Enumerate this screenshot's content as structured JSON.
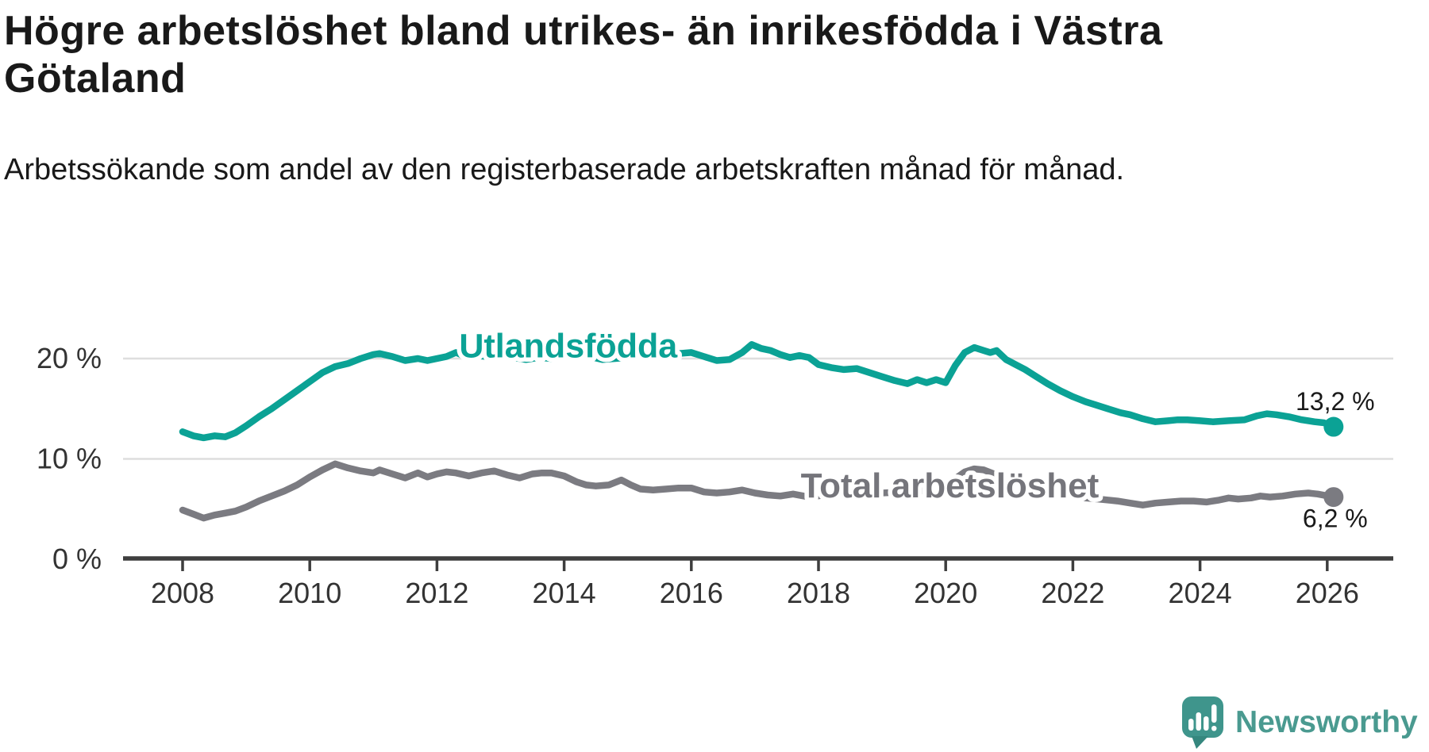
{
  "header": {
    "title": "Högre arbetslöshet bland utrikes- än inrikesfödda i Västra Götaland",
    "subtitle": "Arbetssökande som andel av den registerbaserade arbetskraften månad för månad."
  },
  "footer": {
    "brand": "Newsworthy"
  },
  "colors": {
    "accent_teal": "#0BA295",
    "line_gray": "#7B7B81",
    "label_gray": "#75757B",
    "axis_text": "#333333",
    "axis_line": "#3E3E3E",
    "gridline": "#DEDEDE",
    "logo_teal": "#3F958C"
  },
  "chart_data": {
    "type": "line",
    "title": "Högre arbetslöshet bland utrikes- än inrikesfödda i Västra Götaland",
    "xlabel": "",
    "ylabel": "Arbetssökande som andel av den registerbaserade arbetskraften",
    "grid": "horizontal",
    "legend_position": "inline",
    "xlim": [
      2007.05,
      2027.05
    ],
    "ylim": [
      0,
      22
    ],
    "x_ticks": [
      2008,
      2010,
      2012,
      2014,
      2016,
      2018,
      2020,
      2022,
      2024,
      2026
    ],
    "y_ticks": [
      0,
      10,
      20
    ],
    "y_tick_suffix": " %",
    "series": [
      {
        "name": "Utlandsfödda",
        "color": "#0BA295",
        "label_font_size": 43,
        "end_label": "13,2 %",
        "end_value": 13.2,
        "end_label_position": "above",
        "label_anchor": {
          "year": 2012.35,
          "value": 20.1
        },
        "points": [
          [
            2008.0,
            12.7
          ],
          [
            2008.17,
            12.3
          ],
          [
            2008.33,
            12.1
          ],
          [
            2008.5,
            12.3
          ],
          [
            2008.67,
            12.2
          ],
          [
            2008.83,
            12.6
          ],
          [
            2009.0,
            13.3
          ],
          [
            2009.2,
            14.2
          ],
          [
            2009.4,
            15.0
          ],
          [
            2009.6,
            15.9
          ],
          [
            2009.8,
            16.8
          ],
          [
            2010.0,
            17.7
          ],
          [
            2010.2,
            18.6
          ],
          [
            2010.4,
            19.2
          ],
          [
            2010.6,
            19.5
          ],
          [
            2010.8,
            20.0
          ],
          [
            2011.0,
            20.4
          ],
          [
            2011.1,
            20.5
          ],
          [
            2011.3,
            20.2
          ],
          [
            2011.5,
            19.8
          ],
          [
            2011.7,
            20.0
          ],
          [
            2011.85,
            19.8
          ],
          [
            2012.0,
            20.0
          ],
          [
            2012.15,
            20.2
          ],
          [
            2012.3,
            20.6
          ],
          [
            2012.45,
            20.2
          ],
          [
            2012.6,
            20.3
          ],
          [
            2012.8,
            20.2
          ],
          [
            2013.0,
            20.4
          ],
          [
            2013.2,
            20.1
          ],
          [
            2013.4,
            19.9
          ],
          [
            2013.6,
            20.1
          ],
          [
            2013.8,
            20.0
          ],
          [
            2014.0,
            20.2
          ],
          [
            2014.2,
            20.4
          ],
          [
            2014.4,
            20.2
          ],
          [
            2014.6,
            19.9
          ],
          [
            2014.8,
            20.0
          ],
          [
            2015.0,
            20.1
          ],
          [
            2015.2,
            20.3
          ],
          [
            2015.4,
            20.1
          ],
          [
            2015.6,
            20.2
          ],
          [
            2015.8,
            20.5
          ],
          [
            2016.0,
            20.6
          ],
          [
            2016.2,
            20.2
          ],
          [
            2016.4,
            19.8
          ],
          [
            2016.6,
            19.9
          ],
          [
            2016.8,
            20.6
          ],
          [
            2016.95,
            21.4
          ],
          [
            2017.1,
            21.0
          ],
          [
            2017.25,
            20.8
          ],
          [
            2017.4,
            20.4
          ],
          [
            2017.55,
            20.1
          ],
          [
            2017.7,
            20.3
          ],
          [
            2017.85,
            20.1
          ],
          [
            2018.0,
            19.4
          ],
          [
            2018.2,
            19.1
          ],
          [
            2018.4,
            18.9
          ],
          [
            2018.6,
            19.0
          ],
          [
            2018.8,
            18.6
          ],
          [
            2019.0,
            18.2
          ],
          [
            2019.2,
            17.8
          ],
          [
            2019.4,
            17.5
          ],
          [
            2019.55,
            17.9
          ],
          [
            2019.7,
            17.6
          ],
          [
            2019.85,
            17.9
          ],
          [
            2020.0,
            17.6
          ],
          [
            2020.15,
            19.3
          ],
          [
            2020.3,
            20.6
          ],
          [
            2020.45,
            21.1
          ],
          [
            2020.6,
            20.8
          ],
          [
            2020.7,
            20.6
          ],
          [
            2020.8,
            20.8
          ],
          [
            2020.95,
            19.9
          ],
          [
            2021.1,
            19.4
          ],
          [
            2021.25,
            18.9
          ],
          [
            2021.4,
            18.3
          ],
          [
            2021.6,
            17.5
          ],
          [
            2021.8,
            16.8
          ],
          [
            2022.0,
            16.2
          ],
          [
            2022.2,
            15.7
          ],
          [
            2022.35,
            15.4
          ],
          [
            2022.55,
            15.0
          ],
          [
            2022.75,
            14.6
          ],
          [
            2022.9,
            14.4
          ],
          [
            2023.1,
            14.0
          ],
          [
            2023.3,
            13.7
          ],
          [
            2023.5,
            13.8
          ],
          [
            2023.65,
            13.9
          ],
          [
            2023.8,
            13.9
          ],
          [
            2024.0,
            13.8
          ],
          [
            2024.2,
            13.7
          ],
          [
            2024.45,
            13.8
          ],
          [
            2024.7,
            13.9
          ],
          [
            2024.9,
            14.3
          ],
          [
            2025.05,
            14.5
          ],
          [
            2025.2,
            14.4
          ],
          [
            2025.4,
            14.2
          ],
          [
            2025.6,
            13.9
          ],
          [
            2025.8,
            13.7
          ],
          [
            2025.95,
            13.6
          ],
          [
            2026.1,
            13.2
          ]
        ]
      },
      {
        "name": "Total arbetslöshet",
        "color": "#7B7B81",
        "label_color": "#75757B",
        "label_font_size": 44,
        "end_label": "6,2 %",
        "end_value": 6.2,
        "end_label_position": "below",
        "label_anchor": {
          "year": 2017.72,
          "value": 6.15
        },
        "points": [
          [
            2008.0,
            4.9
          ],
          [
            2008.17,
            4.5
          ],
          [
            2008.33,
            4.1
          ],
          [
            2008.5,
            4.4
          ],
          [
            2008.67,
            4.6
          ],
          [
            2008.83,
            4.8
          ],
          [
            2009.0,
            5.2
          ],
          [
            2009.2,
            5.8
          ],
          [
            2009.4,
            6.3
          ],
          [
            2009.6,
            6.8
          ],
          [
            2009.8,
            7.4
          ],
          [
            2010.0,
            8.2
          ],
          [
            2010.2,
            8.9
          ],
          [
            2010.4,
            9.5
          ],
          [
            2010.6,
            9.1
          ],
          [
            2010.8,
            8.8
          ],
          [
            2011.0,
            8.6
          ],
          [
            2011.1,
            8.9
          ],
          [
            2011.3,
            8.5
          ],
          [
            2011.5,
            8.1
          ],
          [
            2011.7,
            8.6
          ],
          [
            2011.85,
            8.2
          ],
          [
            2012.0,
            8.5
          ],
          [
            2012.15,
            8.7
          ],
          [
            2012.3,
            8.6
          ],
          [
            2012.5,
            8.3
          ],
          [
            2012.7,
            8.6
          ],
          [
            2012.9,
            8.8
          ],
          [
            2013.1,
            8.4
          ],
          [
            2013.3,
            8.1
          ],
          [
            2013.5,
            8.5
          ],
          [
            2013.65,
            8.6
          ],
          [
            2013.8,
            8.6
          ],
          [
            2014.0,
            8.3
          ],
          [
            2014.2,
            7.7
          ],
          [
            2014.35,
            7.4
          ],
          [
            2014.5,
            7.3
          ],
          [
            2014.7,
            7.4
          ],
          [
            2014.9,
            7.9
          ],
          [
            2015.05,
            7.4
          ],
          [
            2015.2,
            7.0
          ],
          [
            2015.4,
            6.9
          ],
          [
            2015.6,
            7.0
          ],
          [
            2015.8,
            7.1
          ],
          [
            2016.0,
            7.1
          ],
          [
            2016.2,
            6.7
          ],
          [
            2016.4,
            6.6
          ],
          [
            2016.6,
            6.7
          ],
          [
            2016.8,
            6.9
          ],
          [
            2017.0,
            6.6
          ],
          [
            2017.2,
            6.4
          ],
          [
            2017.4,
            6.3
          ],
          [
            2017.6,
            6.5
          ],
          [
            2017.85,
            6.2
          ],
          [
            2018.1,
            6.4
          ],
          [
            2018.4,
            6.5
          ],
          [
            2018.7,
            6.6
          ],
          [
            2019.0,
            6.6
          ],
          [
            2019.3,
            6.7
          ],
          [
            2019.6,
            6.8
          ],
          [
            2019.9,
            7.0
          ],
          [
            2020.1,
            7.8
          ],
          [
            2020.3,
            8.7
          ],
          [
            2020.45,
            9.0
          ],
          [
            2020.6,
            8.9
          ],
          [
            2020.8,
            8.4
          ],
          [
            2021.0,
            7.9
          ],
          [
            2021.2,
            7.5
          ],
          [
            2021.4,
            7.1
          ],
          [
            2021.6,
            6.8
          ],
          [
            2021.8,
            6.5
          ],
          [
            2022.0,
            6.3
          ],
          [
            2022.2,
            6.1
          ],
          [
            2022.4,
            6.0
          ],
          [
            2022.7,
            5.8
          ],
          [
            2022.9,
            5.6
          ],
          [
            2023.1,
            5.4
          ],
          [
            2023.3,
            5.6
          ],
          [
            2023.5,
            5.7
          ],
          [
            2023.7,
            5.8
          ],
          [
            2023.9,
            5.8
          ],
          [
            2024.1,
            5.7
          ],
          [
            2024.3,
            5.9
          ],
          [
            2024.45,
            6.1
          ],
          [
            2024.6,
            6.0
          ],
          [
            2024.8,
            6.1
          ],
          [
            2024.95,
            6.3
          ],
          [
            2025.1,
            6.2
          ],
          [
            2025.3,
            6.3
          ],
          [
            2025.5,
            6.5
          ],
          [
            2025.7,
            6.6
          ],
          [
            2025.85,
            6.5
          ],
          [
            2026.1,
            6.2
          ]
        ]
      }
    ]
  }
}
